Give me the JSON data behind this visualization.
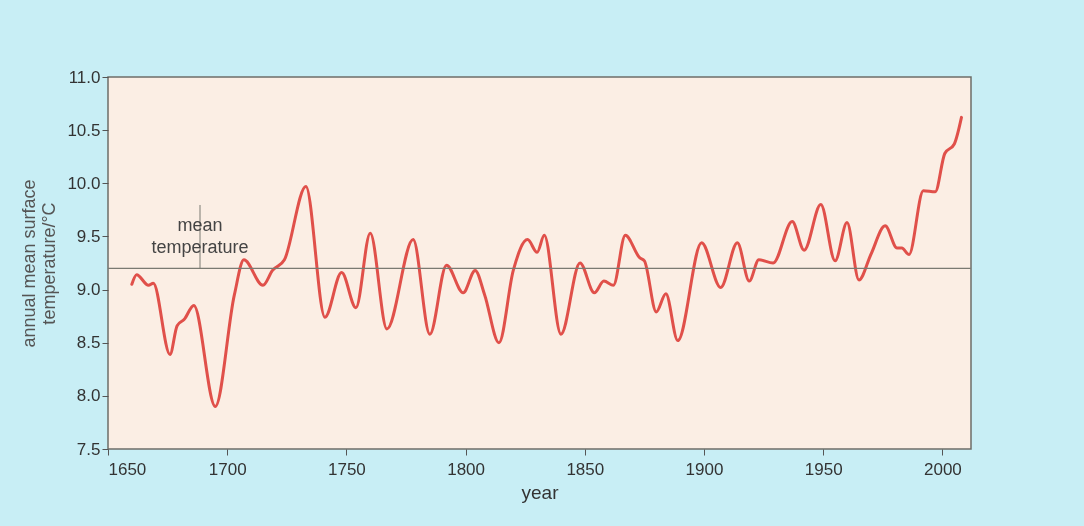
{
  "chart_data": {
    "type": "line",
    "xlabel": "year",
    "ylabel": "annual mean surface temperature/°C",
    "xlim": [
      1650,
      2012
    ],
    "ylim": [
      7.5,
      11.0
    ],
    "xticks": [
      1650,
      1700,
      1750,
      1800,
      1850,
      1900,
      1950,
      2000
    ],
    "yticks": [
      {
        "value": 7.5,
        "label": "7.5"
      },
      {
        "value": 8.0,
        "label": "8.0"
      },
      {
        "value": 8.5,
        "label": "8.5"
      },
      {
        "value": 9.0,
        "label": "9.0"
      },
      {
        "value": 9.5,
        "label": "9.5"
      },
      {
        "value": 10.0,
        "label": "10.0"
      },
      {
        "value": 10.5,
        "label": "10.5"
      },
      {
        "value": 11.0,
        "label": "11.0"
      }
    ],
    "x": [
      1660,
      1662,
      1667,
      1669,
      1676,
      1679,
      1682,
      1686,
      1695,
      1703,
      1707,
      1715,
      1719,
      1724,
      1733,
      1741,
      1748,
      1754,
      1760,
      1767,
      1778,
      1785,
      1792,
      1799,
      1804,
      1808,
      1814,
      1820,
      1826,
      1830,
      1833,
      1840,
      1848,
      1854,
      1858,
      1862,
      1867,
      1873,
      1875,
      1880,
      1884,
      1889,
      1899,
      1907,
      1914,
      1919,
      1923,
      1929,
      1937,
      1942,
      1949,
      1955,
      1960,
      1965,
      1970,
      1976,
      1981,
      1983,
      1986,
      1992,
      1997,
      2001,
      2005,
      2008
    ],
    "series": [
      {
        "color": "#e0504a",
        "values": [
          9.05,
          9.14,
          9.04,
          9.06,
          8.39,
          8.66,
          8.72,
          8.85,
          7.9,
          8.95,
          9.28,
          9.04,
          9.18,
          9.28,
          9.97,
          8.74,
          9.16,
          8.83,
          9.53,
          8.63,
          9.47,
          8.58,
          9.23,
          8.97,
          9.18,
          8.95,
          8.5,
          9.18,
          9.47,
          9.35,
          9.51,
          8.58,
          9.25,
          8.97,
          9.08,
          9.04,
          9.51,
          9.3,
          9.27,
          8.79,
          8.96,
          8.52,
          9.44,
          9.02,
          9.44,
          9.08,
          9.28,
          9.25,
          9.64,
          9.37,
          9.8,
          9.27,
          9.63,
          9.09,
          9.33,
          9.6,
          9.39,
          9.39,
          9.33,
          9.93,
          9.92,
          10.28,
          10.37,
          10.62
        ]
      }
    ],
    "ref_lines": [
      {
        "axis": "y",
        "value": 9.2,
        "label": "mean temperature",
        "color": "#7a7a72"
      }
    ]
  }
}
